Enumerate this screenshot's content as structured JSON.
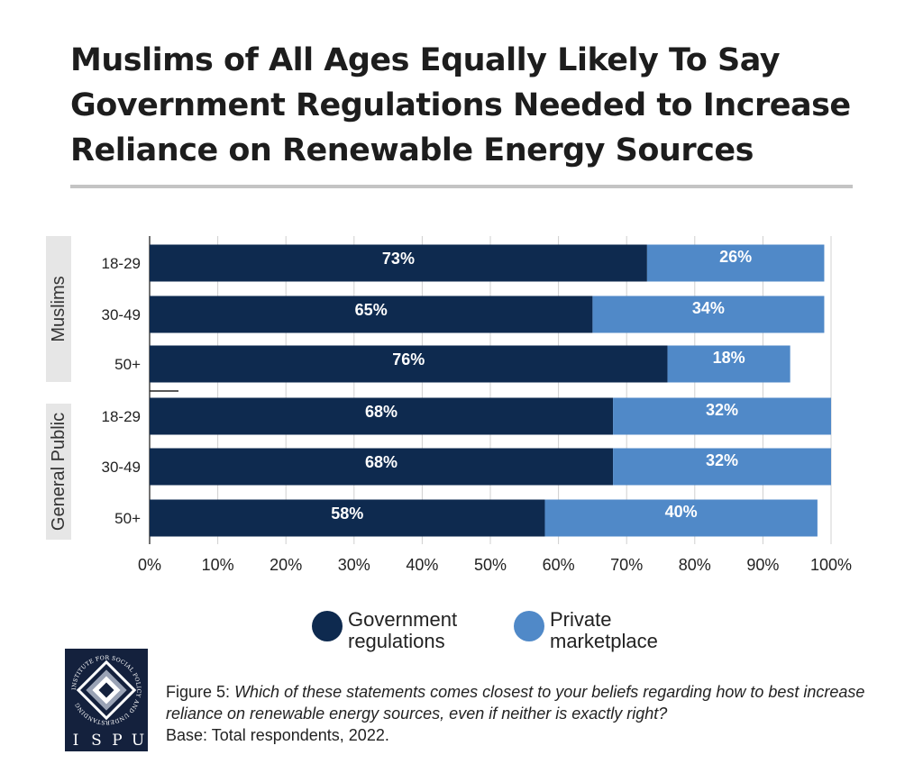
{
  "title_lines": [
    "Muslims of All Ages Equally Likely To Say",
    "Government Regulations Needed to Increase",
    "Reliance on Renewable Energy Sources"
  ],
  "colors": {
    "government": "#0e2a4f",
    "private": "#5089c8",
    "grid": "#d0d0d0",
    "group_label_bg": "#e6e6e6"
  },
  "chart_data": {
    "type": "bar",
    "orientation": "horizontal",
    "stacked": true,
    "title": "Muslims of All Ages Equally Likely To Say Government Regulations Needed to Increase Reliance on Renewable Energy Sources",
    "groups": [
      {
        "name": "Muslims",
        "categories": [
          "18-29",
          "30-49",
          "50+"
        ]
      },
      {
        "name": "General Public",
        "categories": [
          "18-29",
          "30-49",
          "50+"
        ]
      }
    ],
    "series": [
      {
        "name": "Government regulations",
        "values": [
          73,
          65,
          76,
          68,
          68,
          58
        ],
        "labels": [
          "73%",
          "65%",
          "76%",
          "68%",
          "68%",
          "58%"
        ]
      },
      {
        "name": "Private marketplace",
        "values": [
          26,
          34,
          18,
          32,
          32,
          40
        ],
        "labels": [
          "26%",
          "34%",
          "18%",
          "32%",
          "32%",
          "40%"
        ]
      }
    ],
    "xlim": [
      0,
      100
    ],
    "xticks": [
      "0%",
      "10%",
      "20%",
      "30%",
      "40%",
      "50%",
      "60%",
      "70%",
      "80%",
      "90%",
      "100%"
    ],
    "grid": true,
    "legend_position": "bottom"
  },
  "legend": {
    "government_line1": "Government",
    "government_line2": "regulations",
    "private_line1": "Private",
    "private_line2": "marketplace"
  },
  "logo": {
    "ring_text": "INSTITUTE FOR SOCIAL POLICY AND UNDERSTANDING",
    "letters": [
      "I",
      "S",
      "P",
      "U"
    ]
  },
  "caption": {
    "label": "Figure 5:",
    "question": "Which of these statements comes closest to your beliefs regarding how to best increase reliance on renewable energy sources, even if neither is exactly right?",
    "base": "Base: Total respondents, 2022."
  }
}
